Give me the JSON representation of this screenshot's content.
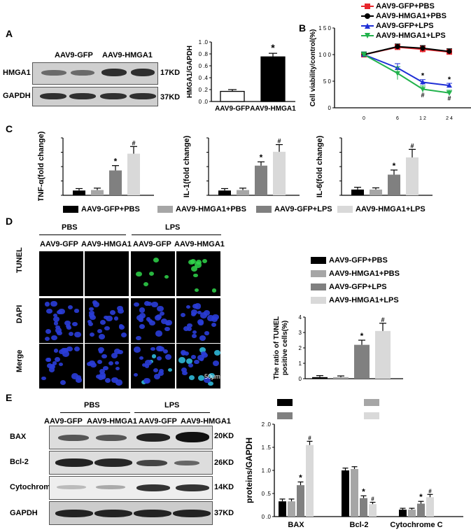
{
  "panels": {
    "A": "A",
    "B": "B",
    "C": "C",
    "D": "D",
    "E": "E"
  },
  "panelA": {
    "lanes": [
      "AAV9-GFP",
      "AAV9-HMGA1"
    ],
    "rows": [
      {
        "name": "HMGA1",
        "kd": "17KD"
      },
      {
        "name": "GAPDH",
        "kd": "37KD"
      }
    ]
  },
  "panelD": {
    "groups": [
      "PBS",
      "LPS"
    ],
    "lanes": [
      "AAV9-GFP",
      "AAV9-HMGA1",
      "AAV9-GFP",
      "AAV9-HMGA1"
    ],
    "rows": [
      "TUNEL",
      "DAPI",
      "Merge"
    ],
    "scale": "50μm"
  },
  "panelE": {
    "groups": [
      "PBS",
      "LPS"
    ],
    "lanes": [
      "AAV9-GFP",
      "AAV9-HMGA1",
      "AAV9-GFP",
      "AAV9-HMGA1"
    ],
    "rows": [
      {
        "name": "BAX",
        "kd": "20KD"
      },
      {
        "name": "Bcl-2",
        "kd": "26KD"
      },
      {
        "name": "Cytochrome C",
        "kd": "14KD"
      },
      {
        "name": "GAPDH",
        "kd": "37KD"
      }
    ]
  },
  "legendC": [
    "AAV9-GFP+PBS",
    "AAV9-HMGA1+PBS",
    "AAV9-GFP+LPS",
    "AAV9-HMGA1+LPS"
  ],
  "colors": {
    "g1": "#000000",
    "g2": "#a6a6a6",
    "g3": "#808080",
    "g4": "#d9d9d9",
    "red": "#e8262c",
    "black": "#000000",
    "blue": "#1f2fd6",
    "green": "#22b24c",
    "tunel": "#2fd64a",
    "dapi": "#2a3dd8"
  },
  "chart_data": [
    {
      "id": "A",
      "type": "bar",
      "categories": [
        "AAV9-GFP",
        "AAV9-HMGA1"
      ],
      "values": [
        0.17,
        0.75
      ],
      "errors": [
        0.03,
        0.06
      ],
      "ylabel": "HMGA1/GAPDH",
      "ylim": [
        0,
        1.0
      ],
      "yticks": [
        "0 .0",
        "0 .2",
        "0 .4",
        "0 .6",
        "0 .8",
        "1 .0"
      ],
      "annotations": [
        "",
        "*"
      ]
    },
    {
      "id": "B",
      "type": "line",
      "x": [
        0,
        6,
        12,
        24
      ],
      "xticks": [
        "0",
        "6",
        "1 2",
        "2 4"
      ],
      "xunit": "h",
      "ylabel": "Cell viability/control(%)",
      "ylim": [
        0,
        150
      ],
      "yticks": [
        "0",
        "5 0",
        "1 0 0",
        "1 5 0"
      ],
      "series": [
        {
          "name": "AAV9-GFP+PBS",
          "values": [
            100,
            114,
            110,
            105
          ],
          "errors": [
            5,
            5,
            6,
            5
          ]
        },
        {
          "name": "AAV9-HMGA1+PBS",
          "values": [
            100,
            115,
            112,
            106
          ],
          "errors": [
            4,
            5,
            5,
            5
          ]
        },
        {
          "name": "AAV9-GFP+LPS",
          "values": [
            100,
            75,
            48,
            42
          ],
          "errors": [
            5,
            8,
            5,
            4
          ]
        },
        {
          "name": "AAV9-HMGA1+LPS",
          "values": [
            100,
            65,
            35,
            28
          ],
          "errors": [
            5,
            12,
            6,
            5
          ]
        }
      ],
      "annotations": [
        "*",
        "*",
        "#",
        "#"
      ]
    },
    {
      "id": "C1",
      "type": "bar",
      "categories": [
        "AAV9-GFP+PBS",
        "AAV9-HMGA1+PBS",
        "AAV9-GFP+LPS",
        "AAV9-HMGA1+LPS"
      ],
      "values": [
        1.0,
        1.1,
        5.2,
        8.7
      ],
      "errors": [
        0.4,
        0.4,
        1.0,
        1.5
      ],
      "ylabel": "TNF-α(fold change)",
      "ylim": [
        0,
        12
      ],
      "annotations": [
        "",
        "",
        "*",
        "#"
      ]
    },
    {
      "id": "C2",
      "type": "bar",
      "categories": [
        "AAV9-GFP+PBS",
        "AAV9-HMGA1+PBS",
        "AAV9-GFP+LPS",
        "AAV9-HMGA1+LPS"
      ],
      "values": [
        1.0,
        1.1,
        6.2,
        9.1
      ],
      "errors": [
        0.4,
        0.4,
        0.8,
        1.5
      ],
      "ylabel": "IL-1(fold change)",
      "ylim": [
        0,
        12
      ],
      "annotations": [
        "",
        "",
        "*",
        "#"
      ]
    },
    {
      "id": "C3",
      "type": "bar",
      "categories": [
        "AAV9-GFP+PBS",
        "AAV9-HMGA1+PBS",
        "AAV9-GFP+LPS",
        "AAV9-HMGA1+LPS"
      ],
      "values": [
        1.0,
        1.0,
        3.6,
        6.6
      ],
      "errors": [
        0.4,
        0.3,
        0.8,
        1.4
      ],
      "ylabel": "IL-6(fold change)",
      "ylim": [
        0,
        10
      ],
      "annotations": [
        "",
        "",
        "*",
        "#"
      ]
    },
    {
      "id": "D",
      "type": "bar",
      "categories": [
        "AAV9-GFP+PBS",
        "AAV9-HMGA1+PBS",
        "AAV9-GFP+LPS",
        "AAV9-HMGA1+LPS"
      ],
      "values": [
        0.1,
        0.1,
        2.2,
        3.1
      ],
      "errors": [
        0.1,
        0.08,
        0.3,
        0.5
      ],
      "ylabel": "The ratio of TUNEL positive cells(%)",
      "ylim": [
        0,
        4
      ],
      "yticks": [
        "0",
        "1",
        "2",
        "3",
        "4"
      ],
      "annotations": [
        "",
        "",
        "*",
        "#"
      ]
    },
    {
      "id": "E",
      "type": "bar",
      "categories": [
        "BAX",
        "Bcl-2",
        "Cytochrome C"
      ],
      "series": [
        {
          "name": "AAV9-GFP+PBS",
          "values": [
            0.33,
            1.0,
            0.15
          ],
          "errors": [
            0.05,
            0.05,
            0.03
          ]
        },
        {
          "name": "AAV9-HMGA1+PBS",
          "values": [
            0.33,
            1.03,
            0.15
          ],
          "errors": [
            0.05,
            0.05,
            0.03
          ]
        },
        {
          "name": "AAV9-GFP+LPS",
          "values": [
            0.68,
            0.4,
            0.28
          ],
          "errors": [
            0.07,
            0.05,
            0.05
          ]
        },
        {
          "name": "AAV9-HMGA1+LPS",
          "values": [
            1.55,
            0.27,
            0.42
          ],
          "errors": [
            0.08,
            0.04,
            0.06
          ]
        }
      ],
      "ylabel": "proteins/GAPDH",
      "ylim": [
        0,
        2.0
      ],
      "yticks": [
        "0 .0",
        "0 .5",
        "1 .0",
        "1 .5",
        "2 .0"
      ],
      "annotations": [
        [
          "",
          "",
          "*",
          "#"
        ],
        [
          "",
          "",
          "*",
          "#"
        ],
        [
          "",
          "",
          "*",
          "#"
        ]
      ]
    }
  ]
}
